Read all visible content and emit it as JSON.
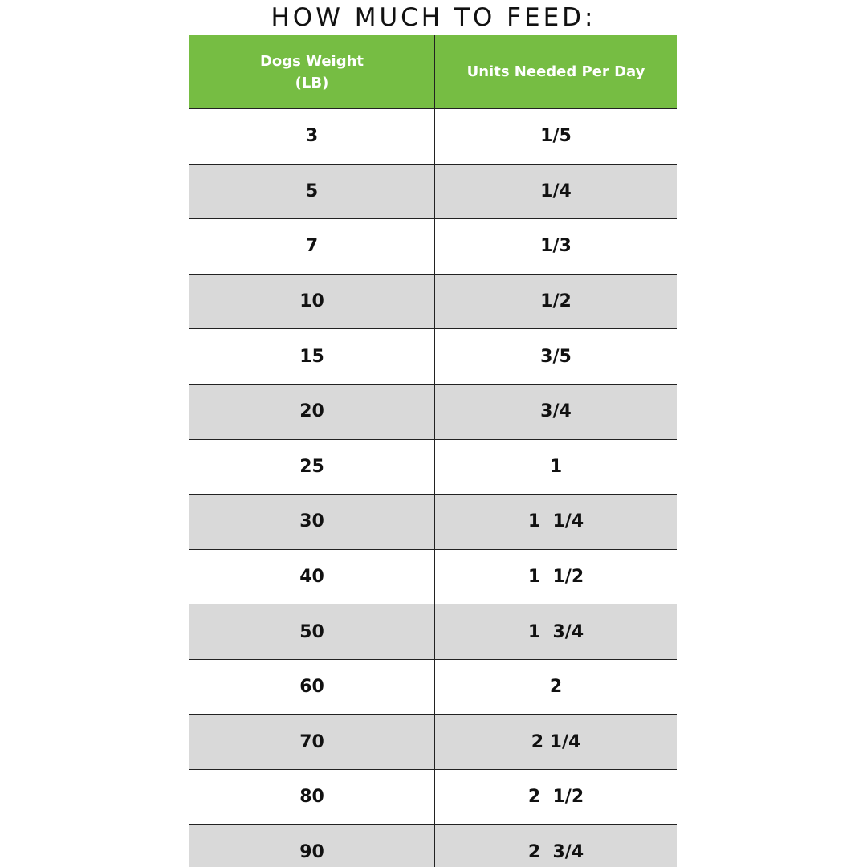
{
  "header": {
    "title": "HOW MUCH TO FEED:"
  },
  "table": {
    "columns": [
      "Dogs Weight\n(LB)",
      "Units Needed Per Day"
    ],
    "rows": [
      [
        3,
        "1/5"
      ],
      [
        5,
        "1/4"
      ],
      [
        7,
        "1/3"
      ],
      [
        10,
        "1/2"
      ],
      [
        15,
        "3/5"
      ],
      [
        20,
        "3/4"
      ],
      [
        25,
        "1"
      ],
      [
        30,
        "1  1/4"
      ],
      [
        40,
        "1  1/2"
      ],
      [
        50,
        "1  3/4"
      ],
      [
        60,
        "2"
      ],
      [
        70,
        "2 1/4"
      ],
      [
        80,
        "2  1/2"
      ],
      [
        90,
        "2  3/4"
      ]
    ]
  }
}
